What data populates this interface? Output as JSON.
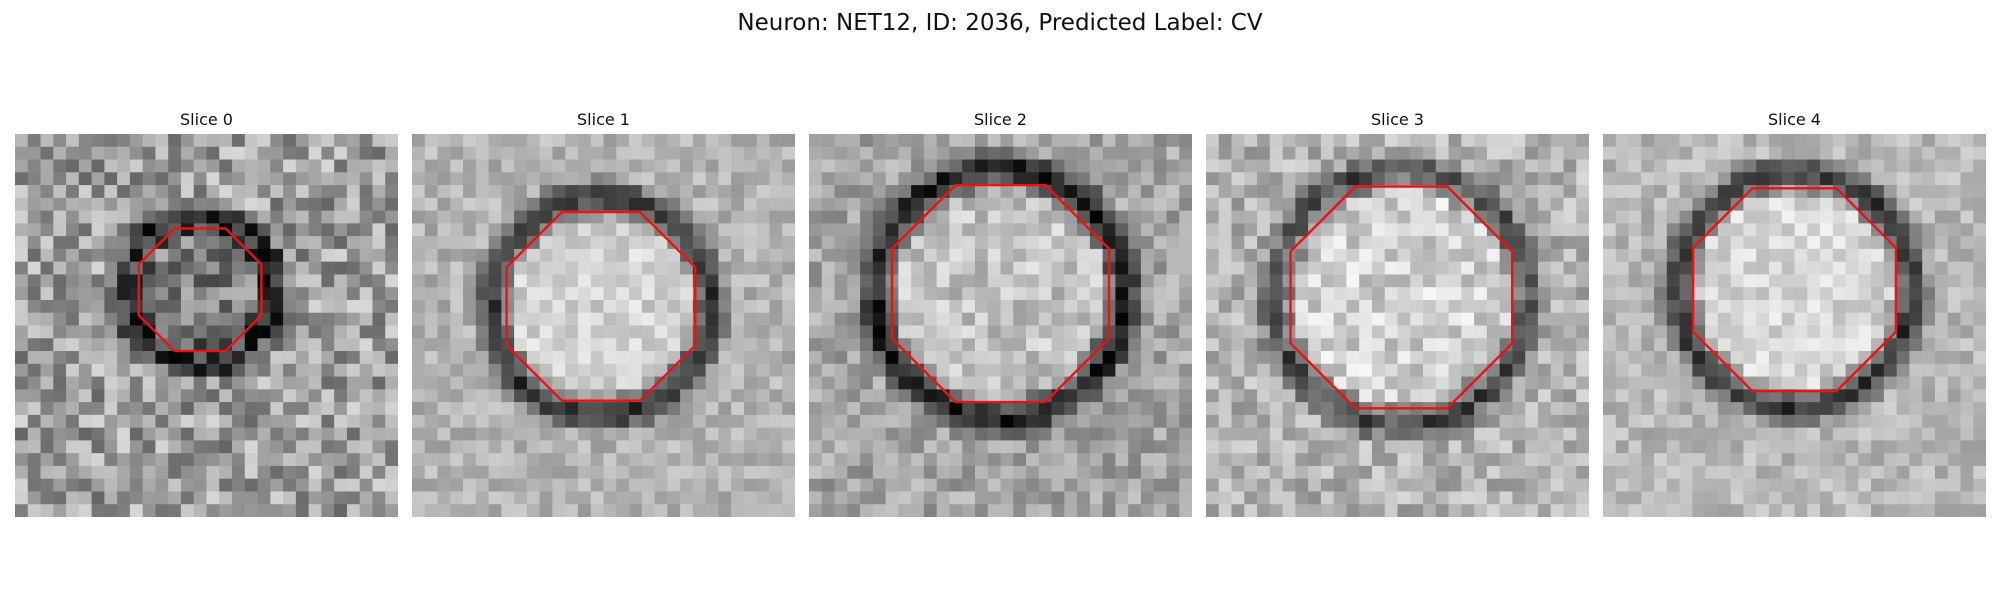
{
  "figure": {
    "title": "Neuron: NET12, ID: 2036, Predicted Label: CV"
  },
  "colors": {
    "contour": "#ee1111",
    "background": "#ffffff"
  },
  "panels": [
    {
      "title": "Slice 0"
    },
    {
      "title": "Slice 1"
    },
    {
      "title": "Slice 2"
    },
    {
      "title": "Slice 3"
    },
    {
      "title": "Slice 4"
    }
  ]
}
